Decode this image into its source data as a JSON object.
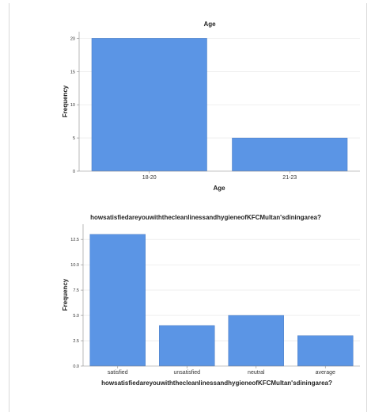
{
  "chart_data": [
    {
      "type": "bar",
      "title": "Age",
      "xlabel": "Age",
      "ylabel": "Frequency",
      "categories": [
        "18-20",
        "21-23"
      ],
      "values": [
        20,
        5
      ],
      "ylim": [
        0,
        21
      ],
      "yticks": [
        "0",
        "5",
        "10",
        "15",
        "20"
      ],
      "bar_color": "#5b95e5",
      "grid": true
    },
    {
      "type": "bar",
      "title": "howsatisfiedareyouwiththecleanlinessandhygieneofKFCMultan'sdiningarea?",
      "xlabel": "howsatisfiedareyouwiththecleanlinessandhygieneofKFCMultan'sdiningarea?",
      "ylabel": "Frequency",
      "categories": [
        "satisfied",
        "unsatisfied",
        "neutral",
        "average"
      ],
      "values": [
        13,
        4,
        5,
        3
      ],
      "ylim": [
        0,
        14
      ],
      "yticks": [
        "0.0",
        "2.5",
        "5.0",
        "7.5",
        "10.0",
        "12.5"
      ],
      "bar_color": "#5b95e5",
      "grid": true
    }
  ]
}
